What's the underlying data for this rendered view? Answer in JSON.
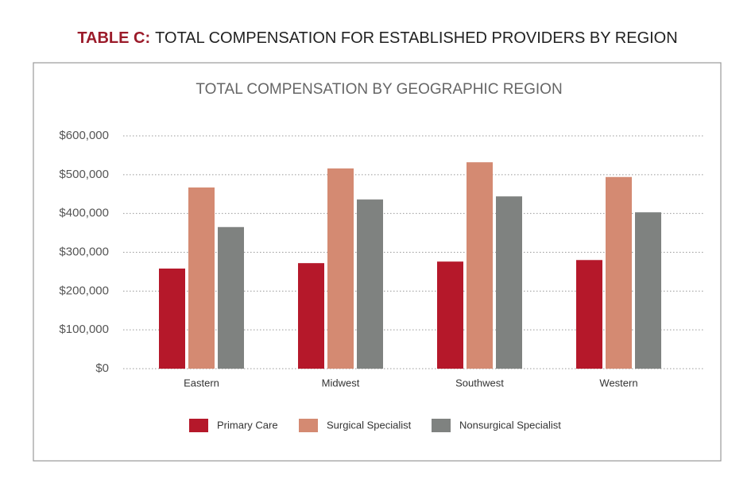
{
  "header": {
    "label": "TABLE C:",
    "title": "TOTAL COMPENSATION FOR ESTABLISHED PROVIDERS BY REGION"
  },
  "chart_data": {
    "type": "bar",
    "title": "TOTAL COMPENSATION BY GEOGRAPHIC REGION",
    "categories": [
      "Eastern",
      "Midwest",
      "Southwest",
      "Western"
    ],
    "series": [
      {
        "name": "Primary Care",
        "color": "#b5182a",
        "values": [
          258000,
          272000,
          276000,
          280000
        ]
      },
      {
        "name": "Surgical Specialist",
        "color": "#d48a72",
        "values": [
          467000,
          516000,
          532000,
          494000
        ]
      },
      {
        "name": "Nonsurgical Specialist",
        "color": "#7f8280",
        "values": [
          365000,
          436000,
          444000,
          403000
        ]
      }
    ],
    "ylim": [
      0,
      600000
    ],
    "yticks": [
      {
        "value": 0,
        "label": "$0"
      },
      {
        "value": 100000,
        "label": "$100,000"
      },
      {
        "value": 200000,
        "label": "$200,000"
      },
      {
        "value": 300000,
        "label": "$300,000"
      },
      {
        "value": 400000,
        "label": "$400,000"
      },
      {
        "value": 500000,
        "label": "$500,000"
      },
      {
        "value": 600000,
        "label": "$600,000"
      }
    ],
    "grid": true,
    "legend": "bottom"
  }
}
